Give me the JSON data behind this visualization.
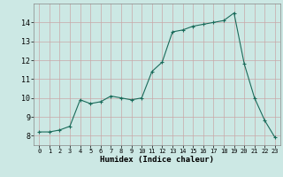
{
  "title": "",
  "xlabel": "Humidex (Indice chaleur)",
  "ylabel": "",
  "bg_color": "#cce8e4",
  "grid_color": "#b8d4d0",
  "line_color": "#1a6b5a",
  "marker_color": "#1a6b5a",
  "xlim": [
    -0.5,
    23.5
  ],
  "ylim": [
    7.5,
    15.0
  ],
  "yticks": [
    8,
    9,
    10,
    11,
    12,
    13,
    14
  ],
  "xticks": [
    0,
    1,
    2,
    3,
    4,
    5,
    6,
    7,
    8,
    9,
    10,
    11,
    12,
    13,
    14,
    15,
    16,
    17,
    18,
    19,
    20,
    21,
    22,
    23
  ],
  "hours": [
    0,
    1,
    2,
    3,
    4,
    5,
    6,
    7,
    8,
    9,
    10,
    11,
    12,
    13,
    14,
    15,
    16,
    17,
    18,
    19,
    20,
    21,
    22,
    23
  ],
  "values": [
    8.2,
    8.2,
    8.3,
    8.5,
    9.9,
    9.7,
    9.8,
    10.1,
    10.0,
    9.9,
    10.0,
    11.4,
    11.9,
    13.5,
    13.6,
    13.8,
    13.9,
    14.0,
    14.1,
    14.5,
    11.8,
    10.0,
    8.8,
    7.9
  ]
}
